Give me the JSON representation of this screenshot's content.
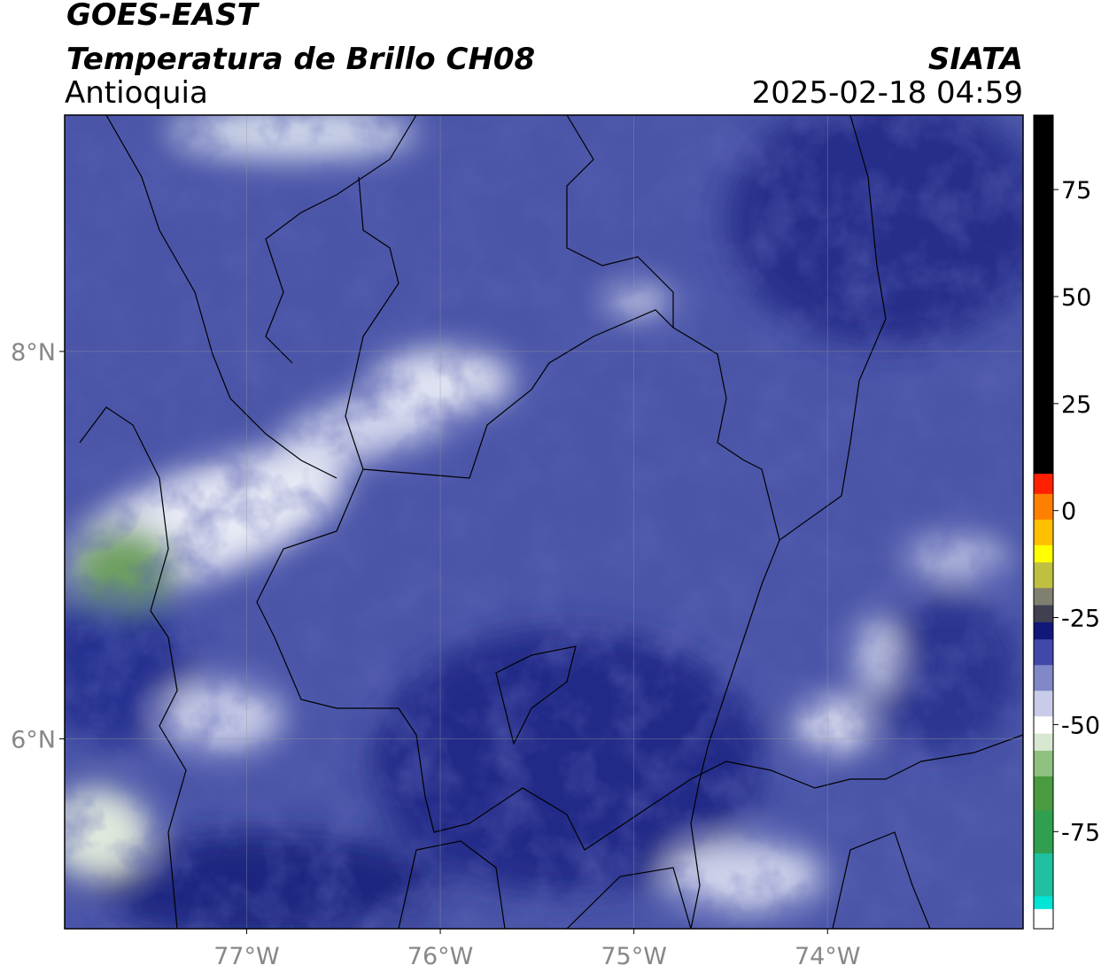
{
  "header": {
    "title_line1": "GOES-EAST",
    "title_line2": "Temperatura de Brillo CH08",
    "region": "Antioquia",
    "agency": "SIATA",
    "datetime": "2025-02-18 04:59"
  },
  "map": {
    "lon_range": [
      -77.94,
      -72.99
    ],
    "lat_range": [
      5.02,
      9.22
    ],
    "lon_ticks": [
      {
        "value": -77,
        "label": "77°W"
      },
      {
        "value": -76,
        "label": "76°W"
      },
      {
        "value": -75,
        "label": "75°W"
      },
      {
        "value": -74,
        "label": "74°W"
      }
    ],
    "lat_ticks": [
      {
        "value": 8,
        "label": "8°N"
      },
      {
        "value": 6,
        "label": "6°N"
      }
    ],
    "grid": true
  },
  "colorbar": {
    "range": [
      -97.7,
      92.4
    ],
    "ticks": [
      75,
      50,
      25,
      0,
      -25,
      -50,
      -75
    ],
    "segments": [
      {
        "from": -97.7,
        "to": -93,
        "color": "#ffffff"
      },
      {
        "from": -93,
        "to": -90,
        "color": "#00e5d5"
      },
      {
        "from": -90,
        "to": -80,
        "color": "#20c0a0"
      },
      {
        "from": -80,
        "to": -70,
        "color": "#30a050"
      },
      {
        "from": -70,
        "to": -62,
        "color": "#4a9a40"
      },
      {
        "from": -62,
        "to": -56,
        "color": "#8fc080"
      },
      {
        "from": -56,
        "to": -52,
        "color": "#d8e8d0"
      },
      {
        "from": -52,
        "to": -48,
        "color": "#ffffff"
      },
      {
        "from": -48,
        "to": -42,
        "color": "#c8cce8"
      },
      {
        "from": -42,
        "to": -36,
        "color": "#8088c8"
      },
      {
        "from": -36,
        "to": -30,
        "color": "#4048a8"
      },
      {
        "from": -30,
        "to": -26,
        "color": "#101878"
      },
      {
        "from": -26,
        "to": -22,
        "color": "#404050"
      },
      {
        "from": -22,
        "to": -18,
        "color": "#808070"
      },
      {
        "from": -18,
        "to": -12,
        "color": "#c0c040"
      },
      {
        "from": -12,
        "to": -8,
        "color": "#ffff00"
      },
      {
        "from": -8,
        "to": -2,
        "color": "#ffc000"
      },
      {
        "from": -2,
        "to": 4,
        "color": "#ff8000"
      },
      {
        "from": 4,
        "to": 8.7,
        "color": "#ff2000"
      },
      {
        "from": 8.7,
        "to": 92.4,
        "color": "#000000"
      }
    ]
  }
}
